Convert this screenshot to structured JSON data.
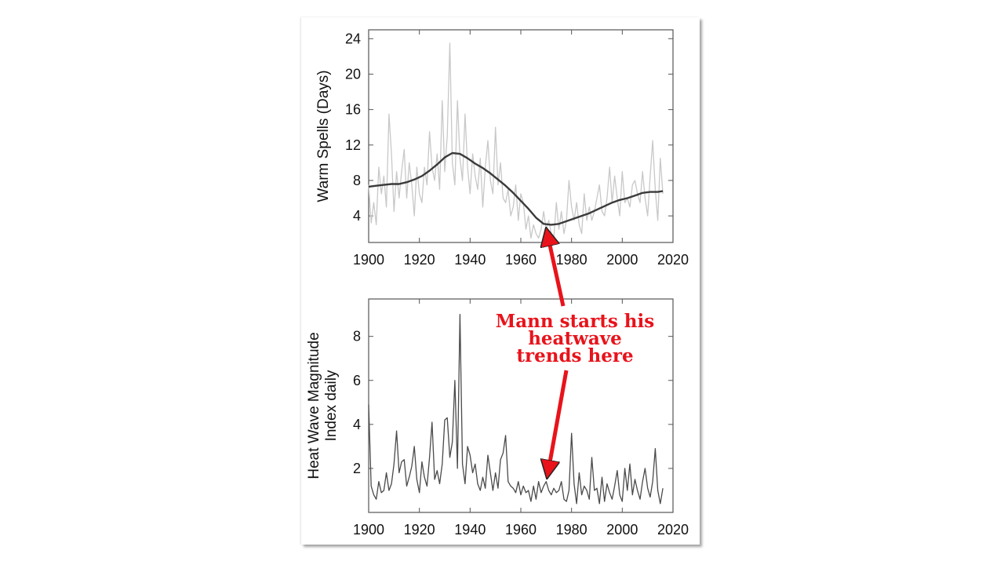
{
  "colors": {
    "annotation": "#e8131b",
    "raw_line": "#c8c8c8",
    "smooth_line": "#3a3a3a",
    "series_line": "#4a4a4a"
  },
  "annotation": {
    "lines": [
      "Mann starts his",
      "heatwave",
      "trends here"
    ]
  },
  "chart_data": [
    {
      "type": "line",
      "title": "",
      "xlabel": "",
      "ylabel": "Warm Spells (Days)",
      "xlim": [
        1900,
        2020
      ],
      "ylim": [
        1,
        25
      ],
      "xticks": [
        "1900",
        "1920",
        "1940",
        "1960",
        "1980",
        "2000",
        "2020"
      ],
      "yticks": [
        "4",
        "8",
        "12",
        "16",
        "20",
        "24"
      ],
      "grid": false,
      "series": [
        {
          "style": "thin-gray",
          "x": [
            1900,
            1901,
            1902,
            1903,
            1904,
            1905,
            1906,
            1907,
            1908,
            1909,
            1910,
            1911,
            1912,
            1913,
            1914,
            1915,
            1916,
            1917,
            1918,
            1919,
            1920,
            1921,
            1922,
            1923,
            1924,
            1925,
            1926,
            1927,
            1928,
            1929,
            1930,
            1931,
            1932,
            1933,
            1934,
            1935,
            1936,
            1937,
            1938,
            1939,
            1940,
            1941,
            1942,
            1943,
            1944,
            1945,
            1946,
            1947,
            1948,
            1949,
            1950,
            1951,
            1952,
            1953,
            1954,
            1955,
            1956,
            1957,
            1958,
            1959,
            1960,
            1961,
            1962,
            1963,
            1964,
            1965,
            1966,
            1967,
            1968,
            1969,
            1970,
            1971,
            1972,
            1973,
            1974,
            1975,
            1976,
            1977,
            1978,
            1979,
            1980,
            1981,
            1982,
            1983,
            1984,
            1985,
            1986,
            1987,
            1988,
            1989,
            1990,
            1991,
            1992,
            1993,
            1994,
            1995,
            1996,
            1997,
            1998,
            1999,
            2000,
            2001,
            2002,
            2003,
            2004,
            2005,
            2006,
            2007,
            2008,
            2009,
            2010,
            2011,
            2012,
            2013,
            2014,
            2015,
            2016
          ],
          "y": [
            7.5,
            3.2,
            5.5,
            3.0,
            9.5,
            6.5,
            8.5,
            5.0,
            15.5,
            11.0,
            4.5,
            9.0,
            6.0,
            9.0,
            11.5,
            6.0,
            10.0,
            7.5,
            4.0,
            9.5,
            6.5,
            5.5,
            9.5,
            7.5,
            13.5,
            9.5,
            8.0,
            11.0,
            7.0,
            17.0,
            9.0,
            13.0,
            23.5,
            10.0,
            7.5,
            17.0,
            10.5,
            8.0,
            15.5,
            9.5,
            6.5,
            11.0,
            8.5,
            7.0,
            10.5,
            5.0,
            9.5,
            12.5,
            8.0,
            6.5,
            14.0,
            7.5,
            10.0,
            6.0,
            5.5,
            7.0,
            4.0,
            5.0,
            7.5,
            3.5,
            6.5,
            5.5,
            2.5,
            4.0,
            1.5,
            3.0,
            2.0,
            1.5,
            2.5,
            4.5,
            2.5,
            3.5,
            2.0,
            1.5,
            5.5,
            2.5,
            4.5,
            2.0,
            3.5,
            8.0,
            5.0,
            3.5,
            5.5,
            3.0,
            2.0,
            6.5,
            3.5,
            5.0,
            3.5,
            4.5,
            6.0,
            7.5,
            4.5,
            4.0,
            6.0,
            9.5,
            5.5,
            8.5,
            6.0,
            4.0,
            9.0,
            5.5,
            6.0,
            5.0,
            7.5,
            8.0,
            6.5,
            5.5,
            9.0,
            6.0,
            4.0,
            8.5,
            12.5,
            7.0,
            3.5,
            10.5,
            6.5
          ]
        },
        {
          "style": "thick-smooth",
          "x": [
            1900,
            1903,
            1906,
            1909,
            1912,
            1915,
            1918,
            1921,
            1924,
            1927,
            1930,
            1933,
            1936,
            1939,
            1942,
            1945,
            1948,
            1951,
            1954,
            1957,
            1960,
            1963,
            1966,
            1969,
            1972,
            1975,
            1978,
            1981,
            1984,
            1987,
            1990,
            1993,
            1996,
            1999,
            2002,
            2005,
            2008,
            2011,
            2014,
            2016
          ],
          "y": [
            7.3,
            7.4,
            7.5,
            7.6,
            7.6,
            7.8,
            8.1,
            8.5,
            9.1,
            9.8,
            10.6,
            11.1,
            11.0,
            10.5,
            9.9,
            9.4,
            8.8,
            8.1,
            7.4,
            6.6,
            5.7,
            4.8,
            3.8,
            3.1,
            3.0,
            3.1,
            3.4,
            3.7,
            4.0,
            4.3,
            4.7,
            5.1,
            5.5,
            5.8,
            6.0,
            6.3,
            6.6,
            6.7,
            6.7,
            6.8
          ]
        }
      ]
    },
    {
      "type": "line",
      "title": "",
      "xlabel": "",
      "ylabel": "Heat Wave Magnitude Index daily",
      "ylabel_lines": [
        "Heat Wave Magnitude",
        "Index daily"
      ],
      "xlim": [
        1900,
        2020
      ],
      "ylim": [
        0,
        9.7
      ],
      "xticks": [
        "1900",
        "1920",
        "1940",
        "1960",
        "1980",
        "2000",
        "2020"
      ],
      "yticks": [
        "2",
        "4",
        "6",
        "8"
      ],
      "grid": false,
      "series": [
        {
          "style": "thin-dark",
          "x": [
            1900,
            1901,
            1902,
            1903,
            1904,
            1905,
            1906,
            1907,
            1908,
            1909,
            1910,
            1911,
            1912,
            1913,
            1914,
            1915,
            1916,
            1917,
            1918,
            1919,
            1920,
            1921,
            1922,
            1923,
            1924,
            1925,
            1926,
            1927,
            1928,
            1929,
            1930,
            1931,
            1932,
            1933,
            1934,
            1935,
            1936,
            1937,
            1938,
            1939,
            1940,
            1941,
            1942,
            1943,
            1944,
            1945,
            1946,
            1947,
            1948,
            1949,
            1950,
            1951,
            1952,
            1953,
            1954,
            1955,
            1956,
            1957,
            1958,
            1959,
            1960,
            1961,
            1962,
            1963,
            1964,
            1965,
            1966,
            1967,
            1968,
            1969,
            1970,
            1971,
            1972,
            1973,
            1974,
            1975,
            1976,
            1977,
            1978,
            1979,
            1980,
            1981,
            1982,
            1983,
            1984,
            1985,
            1986,
            1987,
            1988,
            1989,
            1990,
            1991,
            1992,
            1993,
            1994,
            1995,
            1996,
            1997,
            1998,
            1999,
            2000,
            2001,
            2002,
            2003,
            2004,
            2005,
            2006,
            2007,
            2008,
            2009,
            2010,
            2011,
            2012,
            2013,
            2014,
            2015,
            2016
          ],
          "y": [
            4.9,
            1.2,
            0.8,
            0.6,
            1.4,
            0.9,
            1.0,
            1.8,
            1.0,
            1.3,
            2.2,
            3.7,
            1.8,
            2.3,
            2.4,
            1.2,
            1.6,
            2.1,
            3.0,
            1.5,
            0.9,
            2.3,
            1.6,
            1.2,
            2.5,
            4.1,
            1.5,
            1.9,
            1.3,
            2.2,
            4.2,
            4.3,
            2.5,
            3.2,
            6.0,
            2.0,
            9.0,
            2.2,
            1.3,
            3.0,
            2.6,
            1.8,
            2.2,
            1.3,
            1.0,
            1.6,
            1.1,
            2.6,
            1.8,
            1.0,
            1.8,
            1.1,
            2.4,
            2.7,
            3.5,
            1.4,
            1.2,
            1.1,
            0.9,
            1.4,
            0.8,
            1.2,
            0.9,
            1.0,
            0.5,
            1.2,
            0.6,
            1.4,
            0.9,
            1.2,
            1.4,
            1.0,
            0.8,
            1.1,
            0.9,
            1.0,
            1.4,
            0.6,
            0.5,
            1.0,
            3.6,
            1.3,
            0.4,
            1.8,
            0.8,
            1.2,
            1.0,
            0.6,
            2.5,
            1.0,
            1.1,
            0.4,
            1.6,
            0.5,
            1.3,
            0.9,
            0.6,
            1.2,
            1.9,
            0.8,
            0.5,
            2.0,
            1.0,
            2.2,
            0.8,
            1.5,
            1.0,
            0.6,
            1.4,
            2.0,
            1.1,
            0.7,
            1.4,
            2.9,
            1.0,
            0.4,
            1.1
          ]
        }
      ]
    }
  ]
}
